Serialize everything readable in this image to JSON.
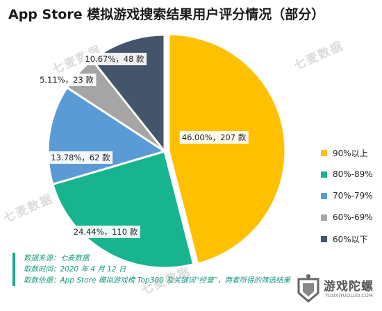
{
  "title": "App Store 模拟游戏搜索结果用户评分情况（部分）",
  "watermark": "七麦数据",
  "chart_data": {
    "type": "pie",
    "title": "App Store 模拟游戏搜索结果用户评分情况（部分）",
    "slices": [
      {
        "name": "90%以上",
        "percent": 46.0,
        "count": 207,
        "label": "46.00%，207 款",
        "color": "#FFC000"
      },
      {
        "name": "80%-89%",
        "percent": 24.44,
        "count": 110,
        "label": "24.44%，110 款",
        "color": "#17B48F"
      },
      {
        "name": "70%-79%",
        "percent": 13.78,
        "count": 62,
        "label": "13.78%，62 款",
        "color": "#5B9BD5"
      },
      {
        "name": "60%-69%",
        "percent": 5.11,
        "count": 23,
        "label": "5.11%，23 款",
        "color": "#A5A5A5"
      },
      {
        "name": "60%以下",
        "percent": 10.67,
        "count": 48,
        "label": "10.67%，48 款",
        "color": "#44546A"
      }
    ],
    "legend_position": "right"
  },
  "source": {
    "line1": "数据来源：七麦数据",
    "line2": "取数时间：2020 年 4 月 12 日",
    "line3": "取数依据：App Store 模拟游戏榜 Top300 及关键词“经营”，两者所得的筛选结果"
  },
  "logo": {
    "name": "游戏陀螺",
    "sub": "YOUXITUOLUO.COM"
  }
}
